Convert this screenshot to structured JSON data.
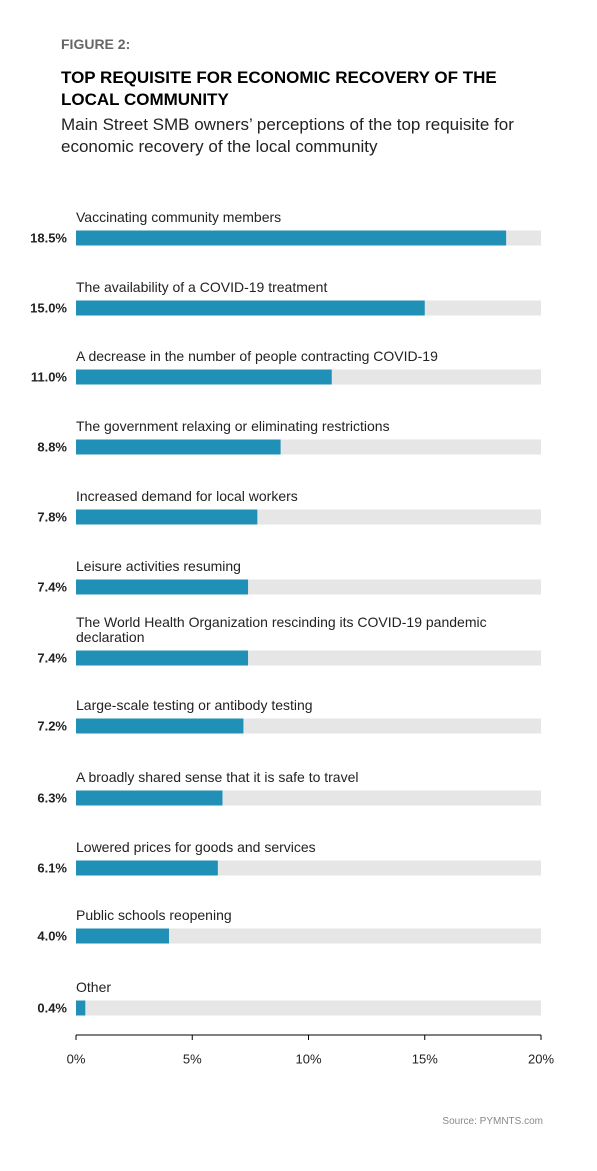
{
  "chart_data": {
    "type": "bar",
    "orientation": "horizontal",
    "figure_label": "FIGURE 2:",
    "title": "TOP REQUISITE FOR ECONOMIC RECOVERY OF THE LOCAL COMMUNITY",
    "subtitle": "Main Street SMB owners’ perceptions of the top requisite for economic recovery of the local community",
    "categories": [
      "Vaccinating community members",
      "The availability of a COVID-19 treatment",
      "A decrease in the number of people contracting COVID-19",
      "The government relaxing or eliminating restrictions",
      "Increased demand for local workers",
      "Leisure activities resuming",
      "The World Health Organization rescinding its COVID-19 pandemic declaration",
      "Large-scale testing or antibody testing",
      "A broadly shared sense that it is safe to travel",
      "Lowered prices for goods and services",
      "Public schools reopening",
      "Other"
    ],
    "values": [
      18.5,
      15.0,
      11.0,
      8.8,
      7.8,
      7.4,
      7.4,
      7.2,
      6.3,
      6.1,
      4.0,
      0.4
    ],
    "value_labels": [
      "18.5%",
      "15.0%",
      "11.0%",
      "8.8%",
      "7.8%",
      "7.4%",
      "7.4%",
      "7.2%",
      "6.3%",
      "6.1%",
      "4.0%",
      "0.4%"
    ],
    "color": "#2190b6",
    "track_color": "#e6e6e6",
    "xlim": [
      0,
      20
    ],
    "xticks": [
      {
        "value": 0,
        "label": "0%"
      },
      {
        "value": 5,
        "label": "5%"
      },
      {
        "value": 10,
        "label": "10%"
      },
      {
        "value": 15,
        "label": "15%"
      },
      {
        "value": 20,
        "label": "20%"
      }
    ],
    "source": "Source: PYMNTS.com"
  }
}
